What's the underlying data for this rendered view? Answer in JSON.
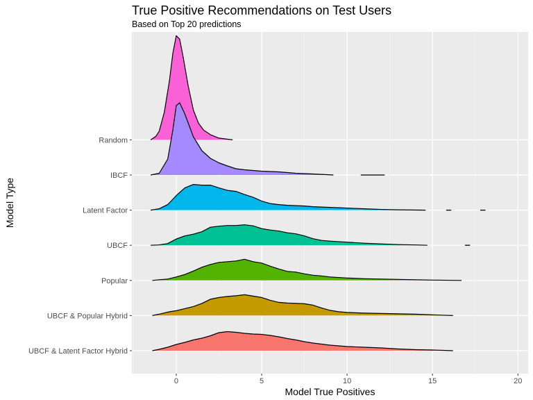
{
  "chart_data": {
    "type": "ridgeline",
    "title": "True Positive Recommendations on Test Users",
    "subtitle": "Based on Top 20 predictions",
    "xlabel": "Model True Positives",
    "ylabel": "Model Type",
    "xlim": [
      -2.6,
      20.6
    ],
    "x_ticks": [
      0,
      5,
      10,
      15,
      20
    ],
    "grid": true,
    "legend": "none",
    "series": [
      {
        "name": "UBCF & Latent Factor Hybrid",
        "color": "#F8766D",
        "points": [
          [
            -1.4,
            0.0
          ],
          [
            -1.0,
            0.04
          ],
          [
            -0.5,
            0.1
          ],
          [
            0.0,
            0.18
          ],
          [
            0.5,
            0.24
          ],
          [
            1.0,
            0.31
          ],
          [
            1.5,
            0.36
          ],
          [
            2.0,
            0.43
          ],
          [
            2.5,
            0.52
          ],
          [
            3.0,
            0.55
          ],
          [
            3.5,
            0.53
          ],
          [
            4.0,
            0.5
          ],
          [
            4.5,
            0.48
          ],
          [
            5.0,
            0.47
          ],
          [
            5.5,
            0.44
          ],
          [
            6.0,
            0.4
          ],
          [
            6.5,
            0.35
          ],
          [
            7.0,
            0.31
          ],
          [
            7.5,
            0.26
          ],
          [
            8.0,
            0.22
          ],
          [
            8.5,
            0.19
          ],
          [
            9.0,
            0.16
          ],
          [
            9.5,
            0.14
          ],
          [
            10.0,
            0.12
          ],
          [
            11.0,
            0.1
          ],
          [
            12.0,
            0.08
          ],
          [
            13.0,
            0.05
          ],
          [
            14.0,
            0.03
          ],
          [
            15.0,
            0.02
          ],
          [
            16.2,
            0.0
          ]
        ]
      },
      {
        "name": "UBCF & Popular Hybrid",
        "color": "#C49A00",
        "points": [
          [
            -1.4,
            0.0
          ],
          [
            -1.0,
            0.04
          ],
          [
            -0.5,
            0.1
          ],
          [
            0.0,
            0.14
          ],
          [
            0.5,
            0.2
          ],
          [
            1.0,
            0.26
          ],
          [
            1.5,
            0.35
          ],
          [
            2.0,
            0.47
          ],
          [
            2.5,
            0.52
          ],
          [
            3.0,
            0.55
          ],
          [
            3.5,
            0.57
          ],
          [
            4.0,
            0.6
          ],
          [
            4.5,
            0.56
          ],
          [
            5.0,
            0.52
          ],
          [
            5.5,
            0.44
          ],
          [
            6.0,
            0.38
          ],
          [
            6.5,
            0.36
          ],
          [
            7.0,
            0.35
          ],
          [
            7.5,
            0.34
          ],
          [
            8.0,
            0.3
          ],
          [
            8.5,
            0.22
          ],
          [
            9.0,
            0.15
          ],
          [
            9.5,
            0.11
          ],
          [
            10.0,
            0.09
          ],
          [
            11.0,
            0.07
          ],
          [
            12.0,
            0.06
          ],
          [
            13.0,
            0.05
          ],
          [
            14.0,
            0.04
          ],
          [
            15.0,
            0.02
          ],
          [
            16.2,
            0.0
          ]
        ]
      },
      {
        "name": "Popular",
        "color": "#53B400",
        "points": [
          [
            -1.4,
            0.0
          ],
          [
            -1.0,
            0.02
          ],
          [
            -0.5,
            0.04
          ],
          [
            0.0,
            0.1
          ],
          [
            0.5,
            0.17
          ],
          [
            1.0,
            0.27
          ],
          [
            1.5,
            0.38
          ],
          [
            2.0,
            0.46
          ],
          [
            2.5,
            0.52
          ],
          [
            3.0,
            0.54
          ],
          [
            3.5,
            0.56
          ],
          [
            4.0,
            0.61
          ],
          [
            4.5,
            0.54
          ],
          [
            5.0,
            0.5
          ],
          [
            5.5,
            0.41
          ],
          [
            6.0,
            0.33
          ],
          [
            6.5,
            0.26
          ],
          [
            7.0,
            0.24
          ],
          [
            7.5,
            0.19
          ],
          [
            8.0,
            0.15
          ],
          [
            8.5,
            0.13
          ],
          [
            9.0,
            0.1
          ],
          [
            10.0,
            0.07
          ],
          [
            11.0,
            0.05
          ],
          [
            12.0,
            0.04
          ],
          [
            13.0,
            0.03
          ],
          [
            14.0,
            0.02
          ],
          [
            15.0,
            0.01
          ],
          [
            16.7,
            0.0
          ]
        ]
      },
      {
        "name": "UBCF",
        "color": "#00C094",
        "points": [
          [
            -1.5,
            0.0
          ],
          [
            -1.0,
            0.01
          ],
          [
            -0.5,
            0.05
          ],
          [
            0.0,
            0.18
          ],
          [
            0.5,
            0.27
          ],
          [
            1.0,
            0.32
          ],
          [
            1.5,
            0.39
          ],
          [
            2.0,
            0.52
          ],
          [
            2.5,
            0.55
          ],
          [
            3.0,
            0.57
          ],
          [
            3.5,
            0.57
          ],
          [
            4.0,
            0.59
          ],
          [
            4.5,
            0.56
          ],
          [
            5.0,
            0.48
          ],
          [
            5.5,
            0.44
          ],
          [
            6.0,
            0.41
          ],
          [
            6.5,
            0.36
          ],
          [
            7.0,
            0.33
          ],
          [
            7.5,
            0.27
          ],
          [
            8.0,
            0.19
          ],
          [
            8.5,
            0.14
          ],
          [
            9.0,
            0.12
          ],
          [
            10.0,
            0.09
          ],
          [
            11.0,
            0.06
          ],
          [
            12.0,
            0.04
          ],
          [
            13.0,
            0.02
          ],
          [
            14.0,
            0.01
          ],
          [
            14.7,
            0.0
          ]
        ]
      },
      {
        "name": "Latent Factor",
        "color": "#00B6EB",
        "points": [
          [
            -1.5,
            0.0
          ],
          [
            -1.0,
            0.04
          ],
          [
            -0.5,
            0.16
          ],
          [
            0.0,
            0.42
          ],
          [
            0.5,
            0.64
          ],
          [
            1.0,
            0.74
          ],
          [
            1.5,
            0.72
          ],
          [
            2.0,
            0.72
          ],
          [
            2.5,
            0.64
          ],
          [
            3.0,
            0.57
          ],
          [
            3.5,
            0.54
          ],
          [
            4.0,
            0.45
          ],
          [
            4.5,
            0.37
          ],
          [
            5.0,
            0.26
          ],
          [
            5.5,
            0.19
          ],
          [
            6.0,
            0.16
          ],
          [
            6.5,
            0.14
          ],
          [
            7.0,
            0.13
          ],
          [
            7.5,
            0.12
          ],
          [
            8.0,
            0.1
          ],
          [
            9.0,
            0.08
          ],
          [
            10.0,
            0.06
          ],
          [
            11.0,
            0.04
          ],
          [
            12.0,
            0.02
          ],
          [
            13.0,
            0.01
          ],
          [
            14.6,
            0.0
          ]
        ]
      },
      {
        "name": "IBCF",
        "color": "#A58AFF",
        "points": [
          [
            -1.5,
            0.0
          ],
          [
            -1.0,
            0.05
          ],
          [
            -0.5,
            0.46
          ],
          [
            -0.2,
            1.3
          ],
          [
            0.0,
            2.0
          ],
          [
            0.2,
            2.08
          ],
          [
            0.5,
            1.76
          ],
          [
            1.0,
            1.1
          ],
          [
            1.5,
            0.7
          ],
          [
            2.0,
            0.48
          ],
          [
            2.5,
            0.35
          ],
          [
            3.0,
            0.26
          ],
          [
            3.5,
            0.18
          ],
          [
            4.0,
            0.15
          ],
          [
            4.5,
            0.13
          ],
          [
            5.0,
            0.11
          ],
          [
            6.0,
            0.09
          ],
          [
            7.0,
            0.05
          ],
          [
            8.0,
            0.03
          ],
          [
            9.2,
            0.0
          ]
        ]
      },
      {
        "name": "Random",
        "color": "#FB61D7",
        "points": [
          [
            -1.5,
            0.0
          ],
          [
            -1.2,
            0.1
          ],
          [
            -1.0,
            0.25
          ],
          [
            -0.7,
            0.8
          ],
          [
            -0.4,
            1.7
          ],
          [
            -0.2,
            2.5
          ],
          [
            0.0,
            3.0
          ],
          [
            0.2,
            2.9
          ],
          [
            0.4,
            2.4
          ],
          [
            0.7,
            1.55
          ],
          [
            1.0,
            0.86
          ],
          [
            1.3,
            0.48
          ],
          [
            1.6,
            0.28
          ],
          [
            2.0,
            0.15
          ],
          [
            2.5,
            0.05
          ],
          [
            3.3,
            0.0
          ]
        ]
      }
    ],
    "outliers": [
      {
        "series": "IBCF",
        "from": 10.8,
        "to": 12.2
      },
      {
        "series": "Latent Factor",
        "from": 15.8,
        "to": 16.1
      },
      {
        "series": "Latent Factor",
        "from": 17.8,
        "to": 18.1
      },
      {
        "series": "UBCF",
        "from": 16.9,
        "to": 17.2
      }
    ]
  }
}
